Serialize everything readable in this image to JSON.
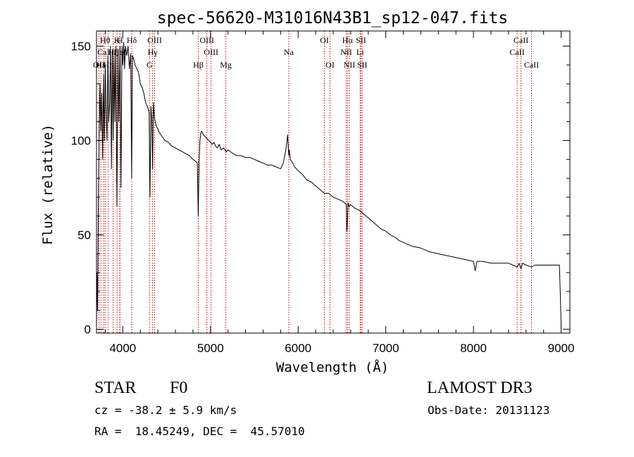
{
  "chart_data": {
    "type": "line",
    "title": "spec-56620-M31016N43B1_sp12-047.fits",
    "xlabel": "Wavelength (Å)",
    "ylabel": "Flux (relative)",
    "xlim": [
      3700,
      9100
    ],
    "ylim": [
      -2,
      158
    ],
    "x_ticks": [
      4000,
      5000,
      6000,
      7000,
      8000,
      9000
    ],
    "x_tick_labels": [
      "4000",
      "5000",
      "6000",
      "7000",
      "8000",
      "9000"
    ],
    "y_ticks": [
      0,
      50,
      100,
      150
    ],
    "y_tick_labels": [
      "0",
      "50",
      "100",
      "150"
    ],
    "series": [
      {
        "name": "flux",
        "x": [
          3700,
          3705,
          3712,
          3720,
          3730,
          3740,
          3750,
          3760,
          3770,
          3780,
          3790,
          3800,
          3810,
          3820,
          3830,
          3840,
          3850,
          3860,
          3870,
          3880,
          3890,
          3900,
          3910,
          3920,
          3933,
          3945,
          3955,
          3968,
          3980,
          3990,
          4000,
          4010,
          4020,
          4030,
          4045,
          4060,
          4075,
          4090,
          4101,
          4110,
          4125,
          4140,
          4160,
          4180,
          4200,
          4220,
          4240,
          4260,
          4280,
          4300,
          4310,
          4320,
          4330,
          4340,
          4350,
          4360,
          4370,
          4380,
          4400,
          4420,
          4450,
          4480,
          4520,
          4560,
          4600,
          4640,
          4680,
          4720,
          4760,
          4800,
          4830,
          4850,
          4860,
          4870,
          4880,
          4890,
          4900,
          4920,
          4940,
          4960,
          4980,
          5000,
          5020,
          5040,
          5060,
          5080,
          5100,
          5120,
          5150,
          5180,
          5200,
          5230,
          5260,
          5300,
          5350,
          5400,
          5450,
          5500,
          5550,
          5600,
          5650,
          5700,
          5750,
          5800,
          5830,
          5860,
          5880,
          5893,
          5900,
          5910,
          5925,
          5940,
          5960,
          5980,
          6000,
          6050,
          6100,
          6150,
          6200,
          6250,
          6300,
          6350,
          6400,
          6450,
          6500,
          6530,
          6550,
          6556,
          6563,
          6570,
          6580,
          6600,
          6650,
          6700,
          6750,
          6800,
          6850,
          6900,
          6950,
          7000,
          7050,
          7100,
          7150,
          7200,
          7300,
          7400,
          7500,
          7600,
          7700,
          7800,
          7900,
          8000,
          8020,
          8040,
          8100,
          8200,
          8300,
          8400,
          8450,
          8498,
          8520,
          8542,
          8560,
          8600,
          8662,
          8700,
          8750,
          8800,
          8850,
          8900,
          8950,
          8980,
          8990,
          9000
        ],
        "values": [
          2,
          30,
          10,
          60,
          100,
          130,
          105,
          125,
          90,
          135,
          100,
          140,
          115,
          100,
          145,
          110,
          120,
          150,
          85,
          148,
          100,
          145,
          110,
          150,
          65,
          148,
          110,
          150,
          75,
          150,
          140,
          152,
          138,
          150,
          145,
          150,
          138,
          146,
          80,
          145,
          143,
          140,
          138,
          136,
          130,
          128,
          125,
          120,
          118,
          115,
          70,
          118,
          112,
          85,
          120,
          112,
          110,
          108,
          106,
          104,
          102,
          100,
          99,
          97,
          96,
          95,
          94,
          93,
          92,
          90,
          89,
          88,
          60,
          87,
          100,
          104,
          105,
          103,
          102,
          101,
          100,
          99,
          98,
          99,
          97,
          96,
          98,
          95,
          96,
          94,
          95,
          94,
          93,
          92,
          92,
          91,
          91,
          90,
          89,
          88,
          87,
          87,
          86,
          85,
          88,
          95,
          103,
          92,
          95,
          90,
          89,
          88,
          86,
          85,
          84,
          82,
          79,
          78,
          76,
          74,
          72,
          72,
          70,
          69,
          68,
          67,
          66,
          52,
          58,
          67,
          65,
          66,
          64,
          63,
          61,
          59,
          57,
          55,
          53,
          52,
          50,
          49,
          47,
          46,
          44,
          43,
          41,
          40,
          39,
          38,
          37,
          36,
          31,
          36,
          36,
          35,
          35,
          35,
          34,
          33,
          35,
          32,
          35,
          34,
          33,
          34,
          34,
          34,
          34,
          34,
          34,
          34,
          20,
          1
        ]
      }
    ],
    "lines": [
      {
        "name": "OII",
        "wavelength": 3727,
        "row": 3
      },
      {
        "name": "Hε",
        "wavelength": 3750,
        "row": 3
      },
      {
        "name": "Hη",
        "wavelength": 3835,
        "row": 3
      },
      {
        "name": "Hθ",
        "wavelength": 3798,
        "row": 1
      },
      {
        "name": "Hζ",
        "wavelength": 3889,
        "row": 2
      },
      {
        "name": "K",
        "wavelength": 3934,
        "row": 1
      },
      {
        "name": "H",
        "wavelength": 3968,
        "row": 1
      },
      {
        "name": "Hδ",
        "wavelength": 4102,
        "row": 1
      },
      {
        "name": "CaI",
        "wavelength": 3780,
        "row": 2
      },
      {
        "name": "HeI",
        "wavelength": 3965,
        "row": 2
      },
      {
        "name": "OIII",
        "wavelength": 4363,
        "row": 1
      },
      {
        "name": "Hγ",
        "wavelength": 4340,
        "row": 2
      },
      {
        "name": "G",
        "wavelength": 4304,
        "row": 3
      },
      {
        "name": "Hβ",
        "wavelength": 4861,
        "row": 3
      },
      {
        "name": "OIII",
        "wavelength": 4959,
        "row": 1
      },
      {
        "name": "OIII",
        "wavelength": 5007,
        "row": 2
      },
      {
        "name": "Mg",
        "wavelength": 5175,
        "row": 3
      },
      {
        "name": "Na",
        "wavelength": 5893,
        "row": 2
      },
      {
        "name": "OI",
        "wavelength": 6300,
        "row": 1
      },
      {
        "name": "OI",
        "wavelength": 6364,
        "row": 3
      },
      {
        "name": "Hα",
        "wavelength": 6563,
        "row": 1
      },
      {
        "name": "NII",
        "wavelength": 6548,
        "row": 2
      },
      {
        "name": "NII",
        "wavelength": 6584,
        "row": 3
      },
      {
        "name": "SII",
        "wavelength": 6717,
        "row": 1
      },
      {
        "name": "Li",
        "wavelength": 6707,
        "row": 2
      },
      {
        "name": "SII",
        "wavelength": 6731,
        "row": 3
      },
      {
        "name": "CaII",
        "wavelength": 8498,
        "row": 2
      },
      {
        "name": "CaII",
        "wavelength": 8542,
        "row": 1
      },
      {
        "name": "CaII",
        "wavelength": 8662,
        "row": 3
      }
    ]
  },
  "info": {
    "class_label": "STAR",
    "subclass": "F0",
    "survey": "LAMOST DR3",
    "redshift": "cz = -38.2 ± 5.9 km/s",
    "obs_date": "Obs-Date: 20131123",
    "coords": "RA =  18.45249, DEC =  45.57010"
  }
}
